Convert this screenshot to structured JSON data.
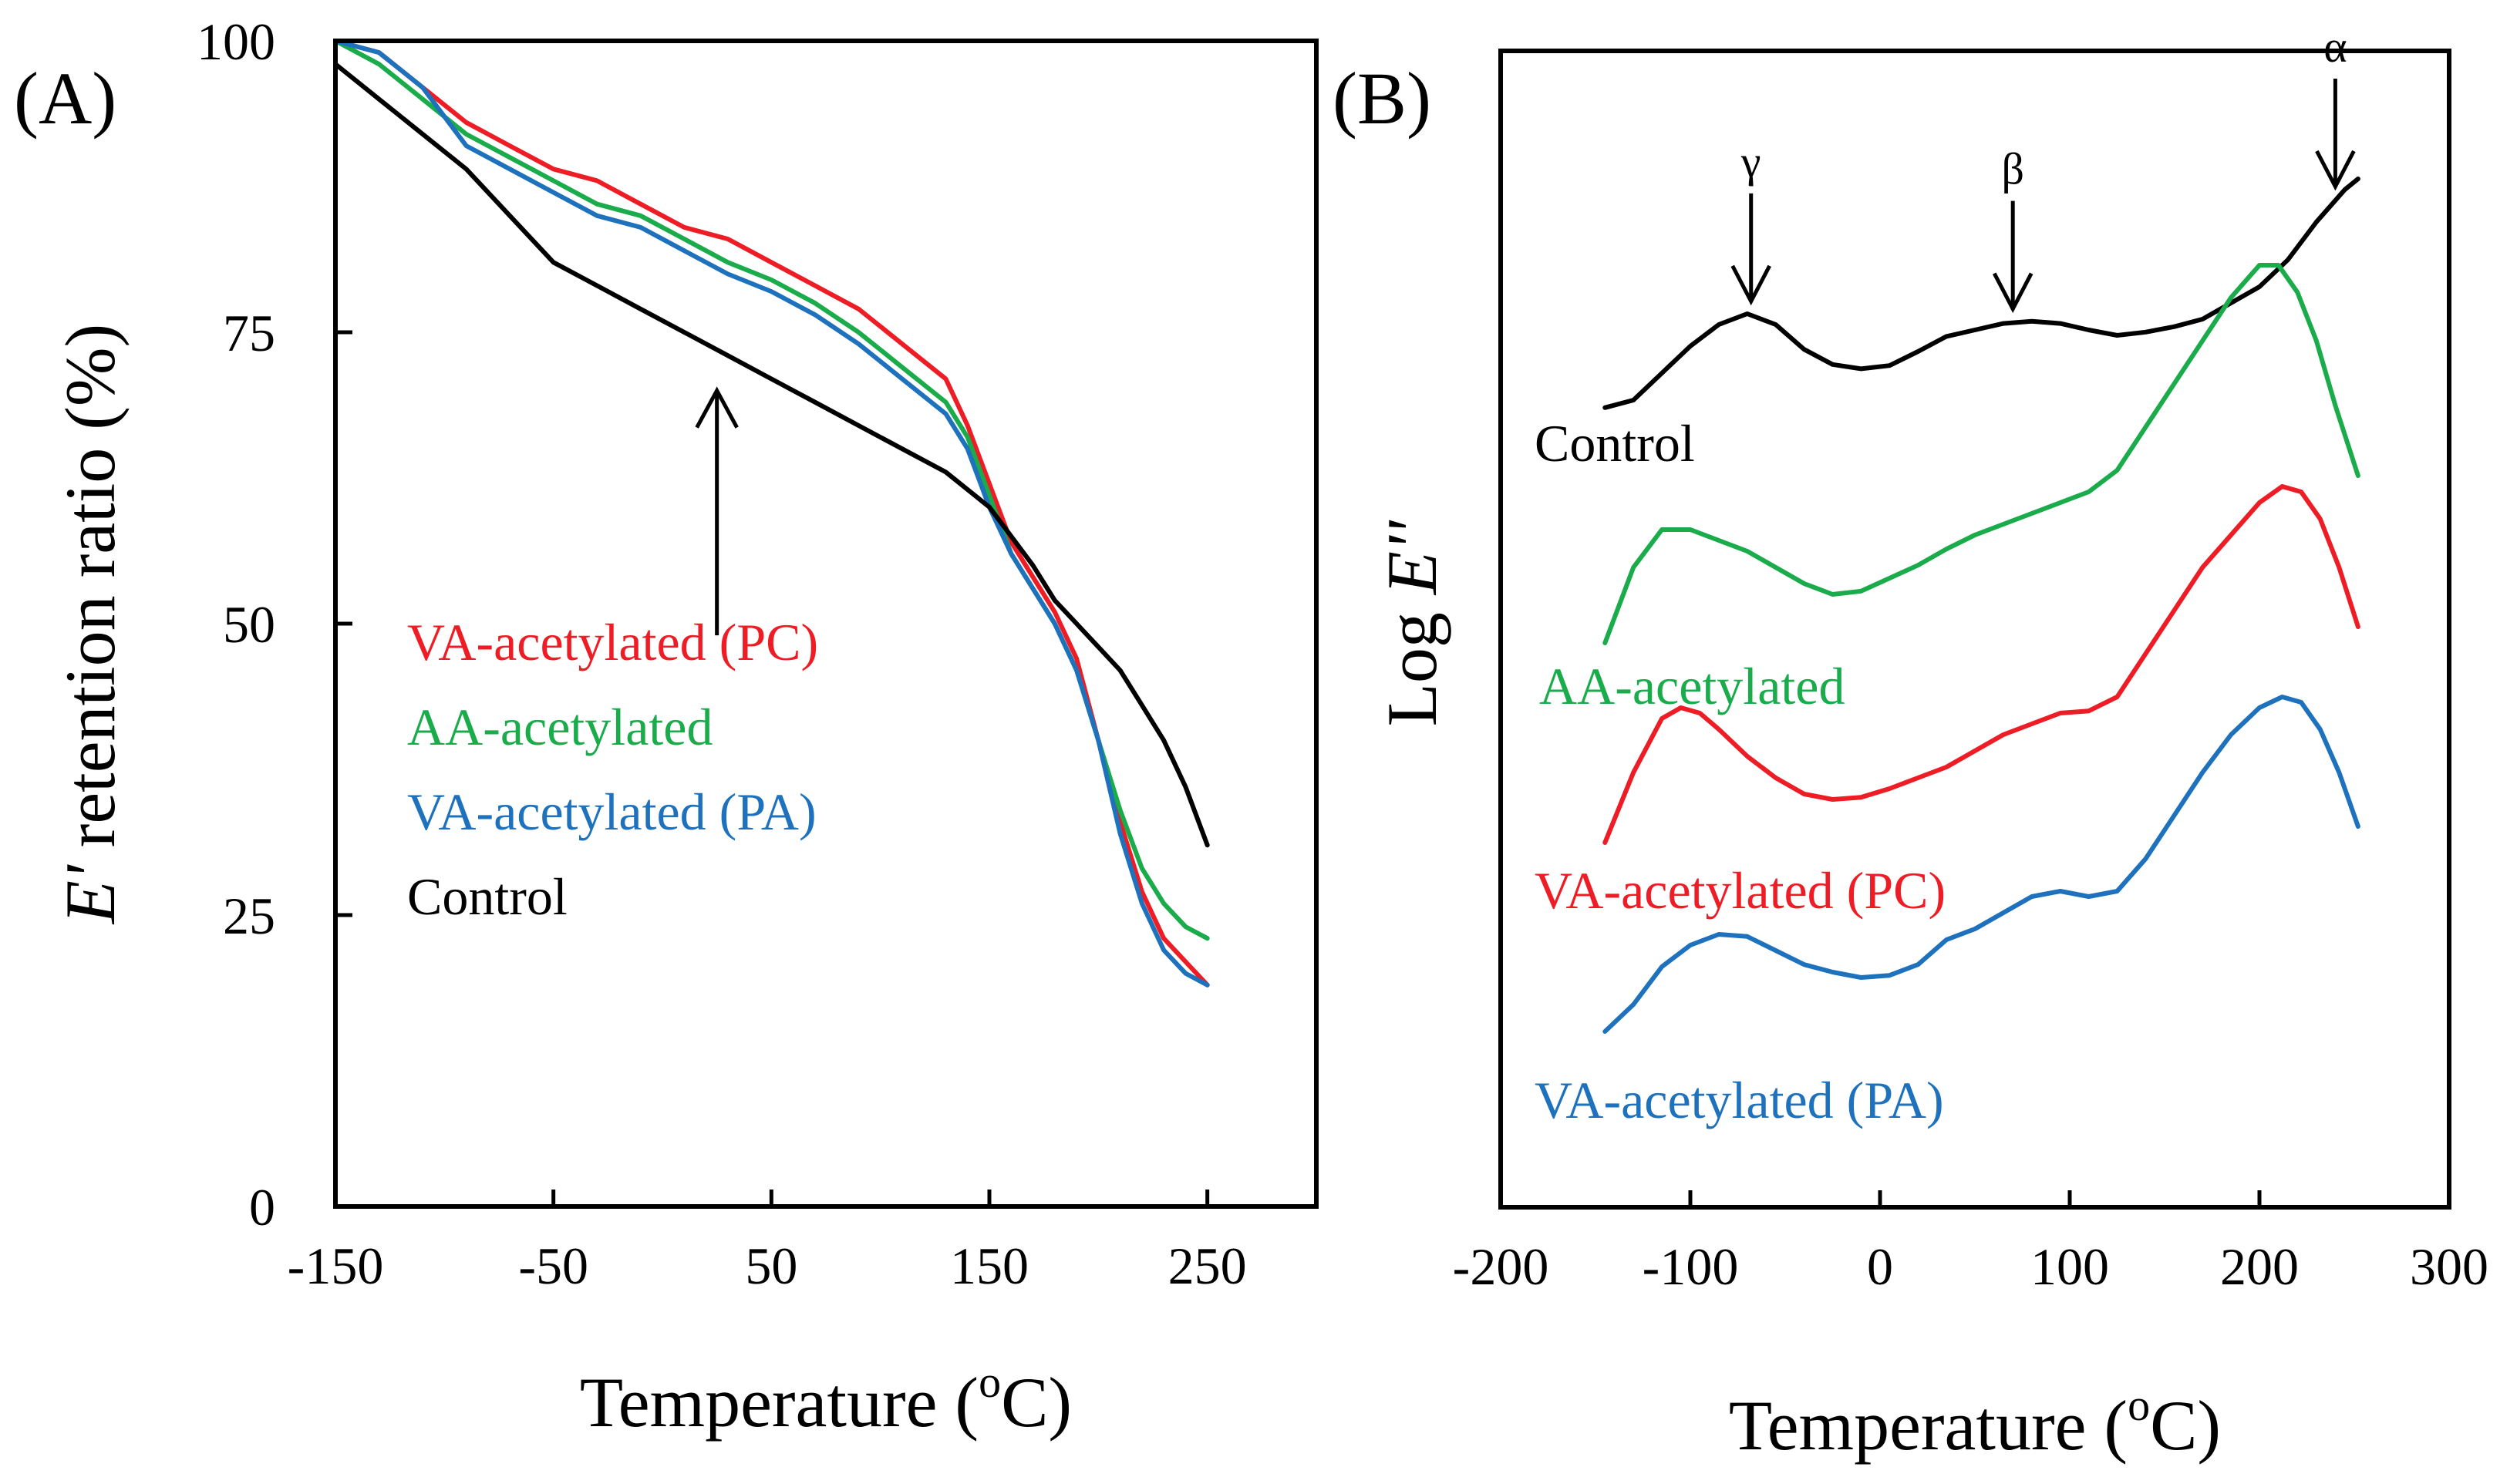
{
  "chart_data": [
    {
      "type": "line",
      "panel_label": "(A)",
      "title": "",
      "xlabel": "Temperature (°C)",
      "xlabel_parts": {
        "pre": "Temperature (",
        "sup": "o",
        "post": "C)"
      },
      "ylabel": "E' retention ratio (%)",
      "ylabel_parts": {
        "italic": "E'",
        "rest": " retention ratio (%)"
      },
      "xlim": [
        -150,
        300
      ],
      "ylim": [
        0,
        100
      ],
      "xticks": [
        -150,
        -50,
        50,
        150,
        250
      ],
      "xtick_labels": [
        "-150",
        "-50",
        "50",
        "150",
        "250"
      ],
      "yticks": [
        0,
        25,
        50,
        75,
        100
      ],
      "ytick_labels": [
        "0",
        "25",
        "50",
        "75",
        "100"
      ],
      "grid": false,
      "legend_position": "center-left",
      "annotation": {
        "type": "arrow",
        "from": [
          25,
          49
        ],
        "to": [
          25,
          70
        ],
        "points_to": "Control"
      },
      "series": [
        {
          "name": "VA-acetylated (PC)",
          "color": "#ee1c25",
          "x": [
            -150,
            -130,
            -110,
            -90,
            -70,
            -50,
            -30,
            -10,
            10,
            30,
            50,
            70,
            90,
            110,
            130,
            140,
            150,
            160,
            170,
            180,
            190,
            200,
            210,
            220,
            230,
            240,
            250
          ],
          "y": [
            100,
            99,
            96,
            93,
            91,
            89,
            88,
            86,
            84,
            83,
            81,
            79,
            77,
            74,
            71,
            67,
            62,
            57,
            54,
            51,
            47,
            40,
            33,
            27,
            23,
            21,
            19
          ]
        },
        {
          "name": "AA-acetylated",
          "color": "#1aab4b",
          "x": [
            -150,
            -130,
            -110,
            -90,
            -70,
            -50,
            -30,
            -10,
            10,
            30,
            50,
            70,
            90,
            110,
            130,
            140,
            150,
            160,
            170,
            180,
            190,
            200,
            210,
            220,
            230,
            240,
            250
          ],
          "y": [
            100,
            98,
            95,
            92,
            90,
            88,
            86,
            85,
            83,
            81,
            79.5,
            77.5,
            75,
            72,
            69,
            66,
            61,
            56,
            53,
            50,
            46,
            40,
            34,
            29,
            26,
            24,
            23
          ]
        },
        {
          "name": "VA-acetylated (PA)",
          "color": "#1e72bd",
          "x": [
            -150,
            -130,
            -110,
            -90,
            -70,
            -50,
            -30,
            -10,
            10,
            30,
            50,
            70,
            90,
            110,
            130,
            140,
            150,
            160,
            170,
            180,
            190,
            200,
            210,
            220,
            230,
            240,
            250
          ],
          "y": [
            100,
            99,
            96,
            91,
            89,
            87,
            85,
            84,
            82,
            80,
            78.5,
            76.5,
            74,
            71,
            68,
            65,
            60,
            56,
            53,
            50,
            46,
            40,
            32,
            26,
            22,
            20,
            19
          ]
        },
        {
          "name": "Control",
          "color": "#000000",
          "x": [
            -150,
            -130,
            -110,
            -90,
            -70,
            -50,
            -30,
            -10,
            10,
            30,
            50,
            70,
            90,
            110,
            130,
            150,
            170,
            180,
            190,
            200,
            210,
            220,
            230,
            240,
            250
          ],
          "y": [
            98,
            95,
            92,
            89,
            85,
            81,
            79,
            77,
            75,
            73,
            71,
            69,
            67,
            65,
            63,
            60,
            55,
            52,
            50,
            48,
            46,
            43,
            40,
            36,
            31
          ]
        }
      ]
    },
    {
      "type": "line",
      "panel_label": "(B)",
      "title": "",
      "xlabel": "Temperature (°C)",
      "xlabel_parts": {
        "pre": "Temperature (",
        "sup": "o",
        "post": "C)"
      },
      "ylabel": "Log E''",
      "ylabel_parts": {
        "plain": "Log ",
        "italic": "E''"
      },
      "xlim": [
        -200,
        300
      ],
      "ylim": [
        0,
        10
      ],
      "y_units": "arbitrary (curves vertically offset)",
      "xticks": [
        -200,
        -100,
        0,
        100,
        200,
        300
      ],
      "xtick_labels": [
        "-200",
        "-100",
        "0",
        "100",
        "200",
        "300"
      ],
      "grid": false,
      "transition_labels": [
        {
          "text": "γ",
          "x": -68
        },
        {
          "text": "β",
          "x": 70
        },
        {
          "text": "α",
          "x": 240
        }
      ],
      "series": [
        {
          "name": "Control",
          "color": "#000000",
          "x": [
            -145,
            -130,
            -115,
            -100,
            -85,
            -70,
            -55,
            -40,
            -25,
            -10,
            5,
            20,
            35,
            50,
            65,
            80,
            95,
            110,
            125,
            140,
            155,
            170,
            185,
            200,
            215,
            230,
            245,
            252
          ],
          "y": [
            7.08,
            7.15,
            7.4,
            7.65,
            7.85,
            7.95,
            7.85,
            7.62,
            7.48,
            7.44,
            7.47,
            7.6,
            7.74,
            7.8,
            7.86,
            7.88,
            7.86,
            7.8,
            7.75,
            7.78,
            7.83,
            7.9,
            8.05,
            8.2,
            8.45,
            8.8,
            9.1,
            9.2
          ]
        },
        {
          "name": "AA-acetylated",
          "color": "#1aab4b",
          "x": [
            -145,
            -130,
            -115,
            -100,
            -85,
            -70,
            -55,
            -40,
            -25,
            -10,
            5,
            20,
            35,
            50,
            65,
            80,
            95,
            110,
            125,
            140,
            155,
            170,
            185,
            200,
            210,
            220,
            230,
            240,
            252
          ],
          "y": [
            4.9,
            5.6,
            5.95,
            5.95,
            5.85,
            5.75,
            5.6,
            5.45,
            5.35,
            5.38,
            5.5,
            5.62,
            5.77,
            5.9,
            6.0,
            6.1,
            6.2,
            6.3,
            6.5,
            6.9,
            7.3,
            7.7,
            8.1,
            8.4,
            8.4,
            8.15,
            7.7,
            7.1,
            6.45
          ]
        },
        {
          "name": "VA-acetylated (PC)",
          "color": "#ee1c25",
          "x": [
            -145,
            -130,
            -115,
            -105,
            -95,
            -85,
            -70,
            -55,
            -40,
            -25,
            -10,
            5,
            20,
            35,
            50,
            65,
            80,
            95,
            110,
            125,
            140,
            155,
            170,
            185,
            200,
            212,
            222,
            232,
            242,
            252
          ],
          "y": [
            3.05,
            3.7,
            4.2,
            4.3,
            4.25,
            4.1,
            3.85,
            3.65,
            3.5,
            3.45,
            3.47,
            3.55,
            3.65,
            3.75,
            3.9,
            4.05,
            4.15,
            4.25,
            4.27,
            4.4,
            4.8,
            5.2,
            5.6,
            5.9,
            6.2,
            6.35,
            6.3,
            6.05,
            5.6,
            5.05
          ]
        },
        {
          "name": "VA-acetylated (PA)",
          "color": "#1e72bd",
          "x": [
            -145,
            -130,
            -115,
            -100,
            -85,
            -70,
            -55,
            -40,
            -25,
            -10,
            5,
            20,
            35,
            50,
            65,
            80,
            95,
            110,
            125,
            140,
            155,
            170,
            185,
            200,
            212,
            222,
            232,
            242,
            252
          ],
          "y": [
            1.3,
            1.55,
            1.9,
            2.1,
            2.2,
            2.18,
            2.05,
            1.92,
            1.85,
            1.8,
            1.82,
            1.92,
            2.15,
            2.25,
            2.4,
            2.55,
            2.6,
            2.55,
            2.6,
            2.9,
            3.3,
            3.7,
            4.05,
            4.3,
            4.4,
            4.35,
            4.1,
            3.7,
            3.2
          ]
        }
      ],
      "legend_labels": [
        "Control",
        "AA-acetylated",
        "VA-acetylated (PC)",
        "VA-acetylated (PA)"
      ]
    }
  ]
}
